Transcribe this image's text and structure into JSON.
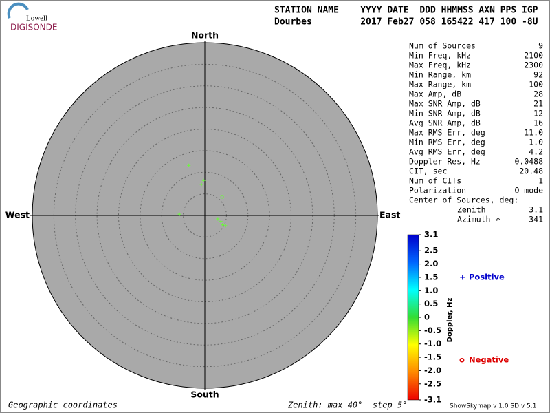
{
  "logo": {
    "top": "Lowell",
    "bottom": "DIGISONDE"
  },
  "header": {
    "line1": "STATION NAME    YYYY DATE  DDD HHMMSS AXN PPS IGP",
    "line2": "Dourbes         2017 Feb27 058 165422 417 100 -8U"
  },
  "stats": {
    "rows": [
      [
        "Num of Sources",
        "9"
      ],
      [
        "Min Freq, kHz",
        "2100"
      ],
      [
        "Max Freq, kHz",
        "2300"
      ],
      [
        "Min Range, km",
        "92"
      ],
      [
        "Max Range, km",
        "100"
      ],
      [
        "Max Amp, dB",
        "28"
      ],
      [
        "Max SNR Amp, dB",
        "21"
      ],
      [
        "Min SNR Amp, dB",
        "12"
      ],
      [
        "Avg SNR Amp, dB",
        "16"
      ],
      [
        "Max RMS Err, deg",
        "11.0"
      ],
      [
        "Min RMS Err, deg",
        "1.0"
      ],
      [
        "Avg RMS Err, deg",
        "4.2"
      ],
      [
        "Doppler Res, Hz",
        "0.0488"
      ],
      [
        "CIT, sec",
        "20.48"
      ],
      [
        "Num of CITs",
        "1"
      ],
      [
        "Polarization",
        "O-mode"
      ],
      [
        "Center of Sources, deg:"
      ],
      [
        "Zenith",
        "3.1"
      ],
      [
        "Azimuth ↶",
        "341"
      ]
    ]
  },
  "chart_data": {
    "type": "skymap",
    "directions": {
      "north": "North",
      "south": "South",
      "east": "East",
      "west": "West"
    },
    "xlim": [
      -40,
      40
    ],
    "ylim": [
      -40,
      40
    ],
    "rticks": [
      5,
      10,
      15,
      20,
      25,
      30,
      35
    ],
    "points": {
      "x": [
        -3.7,
        -0.3,
        -0.8,
        4.0,
        -5.9,
        3.0,
        3.7,
        4.1,
        4.8
      ],
      "y": [
        11.6,
        8.1,
        7.2,
        4.3,
        0.3,
        -0.8,
        -1.4,
        -2.2,
        -2.4
      ],
      "markers": [
        "+",
        "+",
        "+",
        "o",
        "+",
        "+",
        "+",
        "+",
        "+"
      ],
      "color": "#66ff33"
    },
    "colorbar": {
      "label": "Doppler, Hz",
      "clim": [
        -3.1,
        3.1
      ],
      "colors": [
        "#ee0000",
        "#ff8800",
        "#ffff00",
        "#33dd33",
        "#00ffff",
        "#0066ff",
        "#0000cc"
      ],
      "ticks": [
        3.1,
        2.5,
        {
          "value": 2,
          "label": "2.0"
        },
        1.5,
        {
          "value": 1,
          "label": "1.0"
        },
        0.5,
        0,
        -0.5,
        {
          "value": -1,
          "label": "-1.0"
        },
        -1.5,
        {
          "value": -2,
          "label": "-2.0"
        },
        -2.5,
        -3.1
      ]
    },
    "legend": [
      {
        "symbol": "+",
        "label": "Positive",
        "color": "#0000cc"
      },
      {
        "symbol": "o",
        "label": "Negative",
        "color": "#dd0000"
      }
    ]
  },
  "footer": {
    "left": "Geographic coordinates",
    "middle": "Zenith: max 40°  step 5°",
    "right": "ShowSkymap v 1.0  SD v 5.1"
  }
}
